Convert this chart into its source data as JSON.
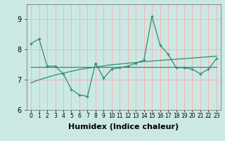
{
  "xlabel": "Humidex (Indice chaleur)",
  "x_values": [
    0,
    1,
    2,
    3,
    4,
    5,
    6,
    7,
    8,
    9,
    10,
    11,
    12,
    13,
    14,
    15,
    16,
    17,
    18,
    19,
    20,
    21,
    22,
    23
  ],
  "line1_y": [
    8.2,
    8.35,
    7.45,
    7.45,
    7.2,
    6.68,
    6.5,
    6.45,
    7.55,
    7.05,
    7.35,
    7.4,
    7.45,
    7.55,
    7.65,
    9.1,
    8.15,
    7.85,
    7.4,
    7.4,
    7.35,
    7.2,
    7.35,
    7.7
  ],
  "line2_y": [
    7.42,
    7.42,
    7.42,
    7.42,
    7.42,
    7.42,
    7.42,
    7.42,
    7.42,
    7.42,
    7.42,
    7.42,
    7.42,
    7.42,
    7.42,
    7.42,
    7.42,
    7.42,
    7.42,
    7.42,
    7.42,
    7.42,
    7.42,
    7.42
  ],
  "line3_y": [
    6.9,
    7.0,
    7.08,
    7.16,
    7.22,
    7.28,
    7.34,
    7.38,
    7.42,
    7.46,
    7.5,
    7.52,
    7.55,
    7.57,
    7.6,
    7.62,
    7.64,
    7.66,
    7.68,
    7.7,
    7.72,
    7.74,
    7.76,
    7.78
  ],
  "line_color": "#2e8b74",
  "bg_color": "#cce8e4",
  "grid_color": "#ffaaaa",
  "ylim": [
    6.0,
    9.5
  ],
  "yticks": [
    6,
    7,
    8,
    9
  ],
  "xlim": [
    -0.5,
    23.5
  ],
  "tick_fontsize": 7,
  "label_fontsize": 8
}
